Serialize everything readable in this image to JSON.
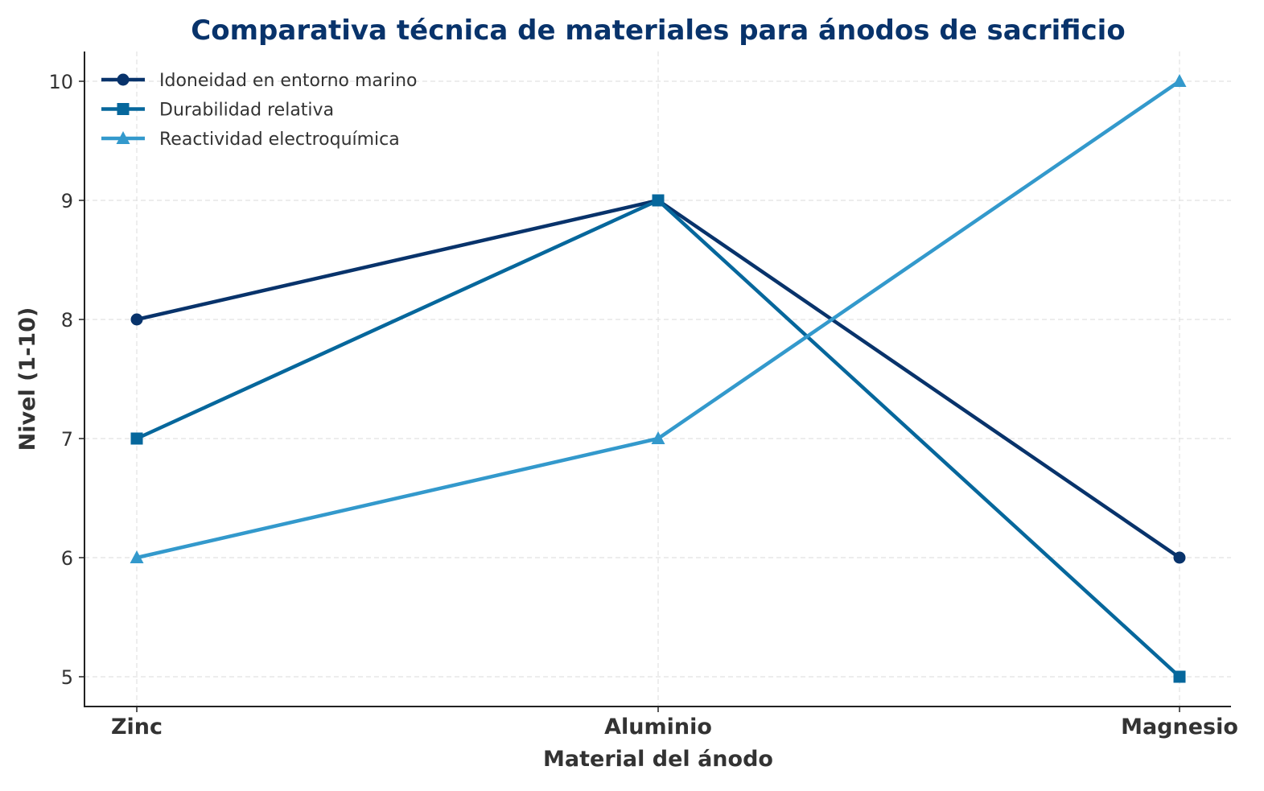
{
  "chart_data": {
    "type": "line",
    "title": "Comparativa técnica de materiales para ánodos de sacrificio",
    "xlabel": "Material del ánodo",
    "ylabel": "Nivel (1-10)",
    "categories": [
      "Zinc",
      "Aluminio",
      "Magnesio"
    ],
    "ylim": [
      4.75,
      10.25
    ],
    "yticks": [
      5,
      6,
      7,
      8,
      9,
      10
    ],
    "grid": true,
    "legend_position": "top-left",
    "series": [
      {
        "name": "Idoneidad en entorno marino",
        "values": [
          8,
          9,
          6
        ],
        "color": "#08336b",
        "marker": "circle"
      },
      {
        "name": "Durabilidad relativa",
        "values": [
          7,
          9,
          5
        ],
        "color": "#06679c",
        "marker": "square"
      },
      {
        "name": "Reactividad electroquímica",
        "values": [
          6,
          7,
          10
        ],
        "color": "#3399cc",
        "marker": "triangle"
      }
    ],
    "title_color": "#08336b"
  }
}
